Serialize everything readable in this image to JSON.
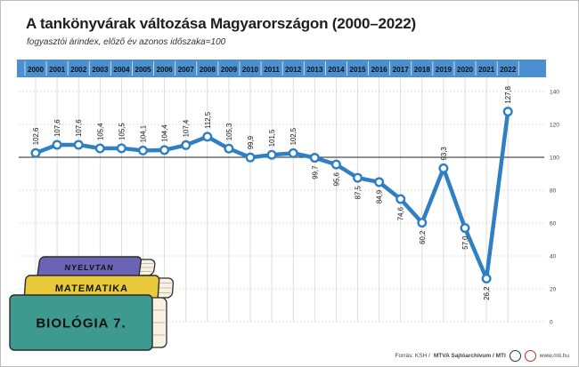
{
  "title": "A tankönyvárak változása Magyarországon (2000–2022)",
  "subtitle": "fogyasztói árindex, előző év azonos időszaka=100",
  "footer": {
    "source": "Forrás: KSH /",
    "agency": "MTVA Sajtóarchívum / MTI",
    "website": "www.mti.hu"
  },
  "books": [
    {
      "label": "NYELVTAN",
      "color": "#6b63b5"
    },
    {
      "label": "MATEMATIKA",
      "color": "#e8c93a"
    },
    {
      "label": "BIOLÓGIA 7.",
      "color": "#3e9a8e"
    }
  ],
  "colors": {
    "band": "#4a90d0",
    "line": "#2f7fc4",
    "marker_fill": "#ffffff",
    "grid": "#d5d5d5",
    "reference": "#222222"
  },
  "chart_data": {
    "type": "line",
    "x": [
      "2000",
      "2001",
      "2002",
      "2003",
      "2004",
      "2005",
      "2006",
      "2007",
      "2008",
      "2009",
      "2010",
      "2011",
      "2012",
      "2013",
      "2014",
      "2015",
      "2016",
      "2017",
      "2018",
      "2019",
      "2020",
      "2021",
      "2022"
    ],
    "series": [
      {
        "values": [
          102.6,
          107.6,
          107.6,
          105.4,
          105.5,
          104.1,
          104.4,
          107.4,
          112.5,
          105.3,
          99.9,
          101.5,
          102.5,
          99.7,
          95.6,
          87.5,
          84.9,
          74.6,
          60.2,
          93.3,
          57.0,
          26.2,
          127.8
        ],
        "labels": [
          "102,6",
          "107,6",
          "107,6",
          "105,4",
          "105,5",
          "104,1",
          "104,4",
          "107,4",
          "112,5",
          "105,3",
          "99,9",
          "101,5",
          "102,5",
          "99,7",
          "95,6",
          "87,5",
          "84,9",
          "74,6",
          "60,2",
          "93,3",
          "57,0",
          "26,2",
          "127,8"
        ]
      }
    ],
    "y_ticks": [
      0,
      20,
      40,
      60,
      80,
      100,
      120,
      140
    ],
    "ylim": [
      0,
      140
    ],
    "reference_line": 100,
    "grid": true,
    "y_axis_position": "right"
  }
}
